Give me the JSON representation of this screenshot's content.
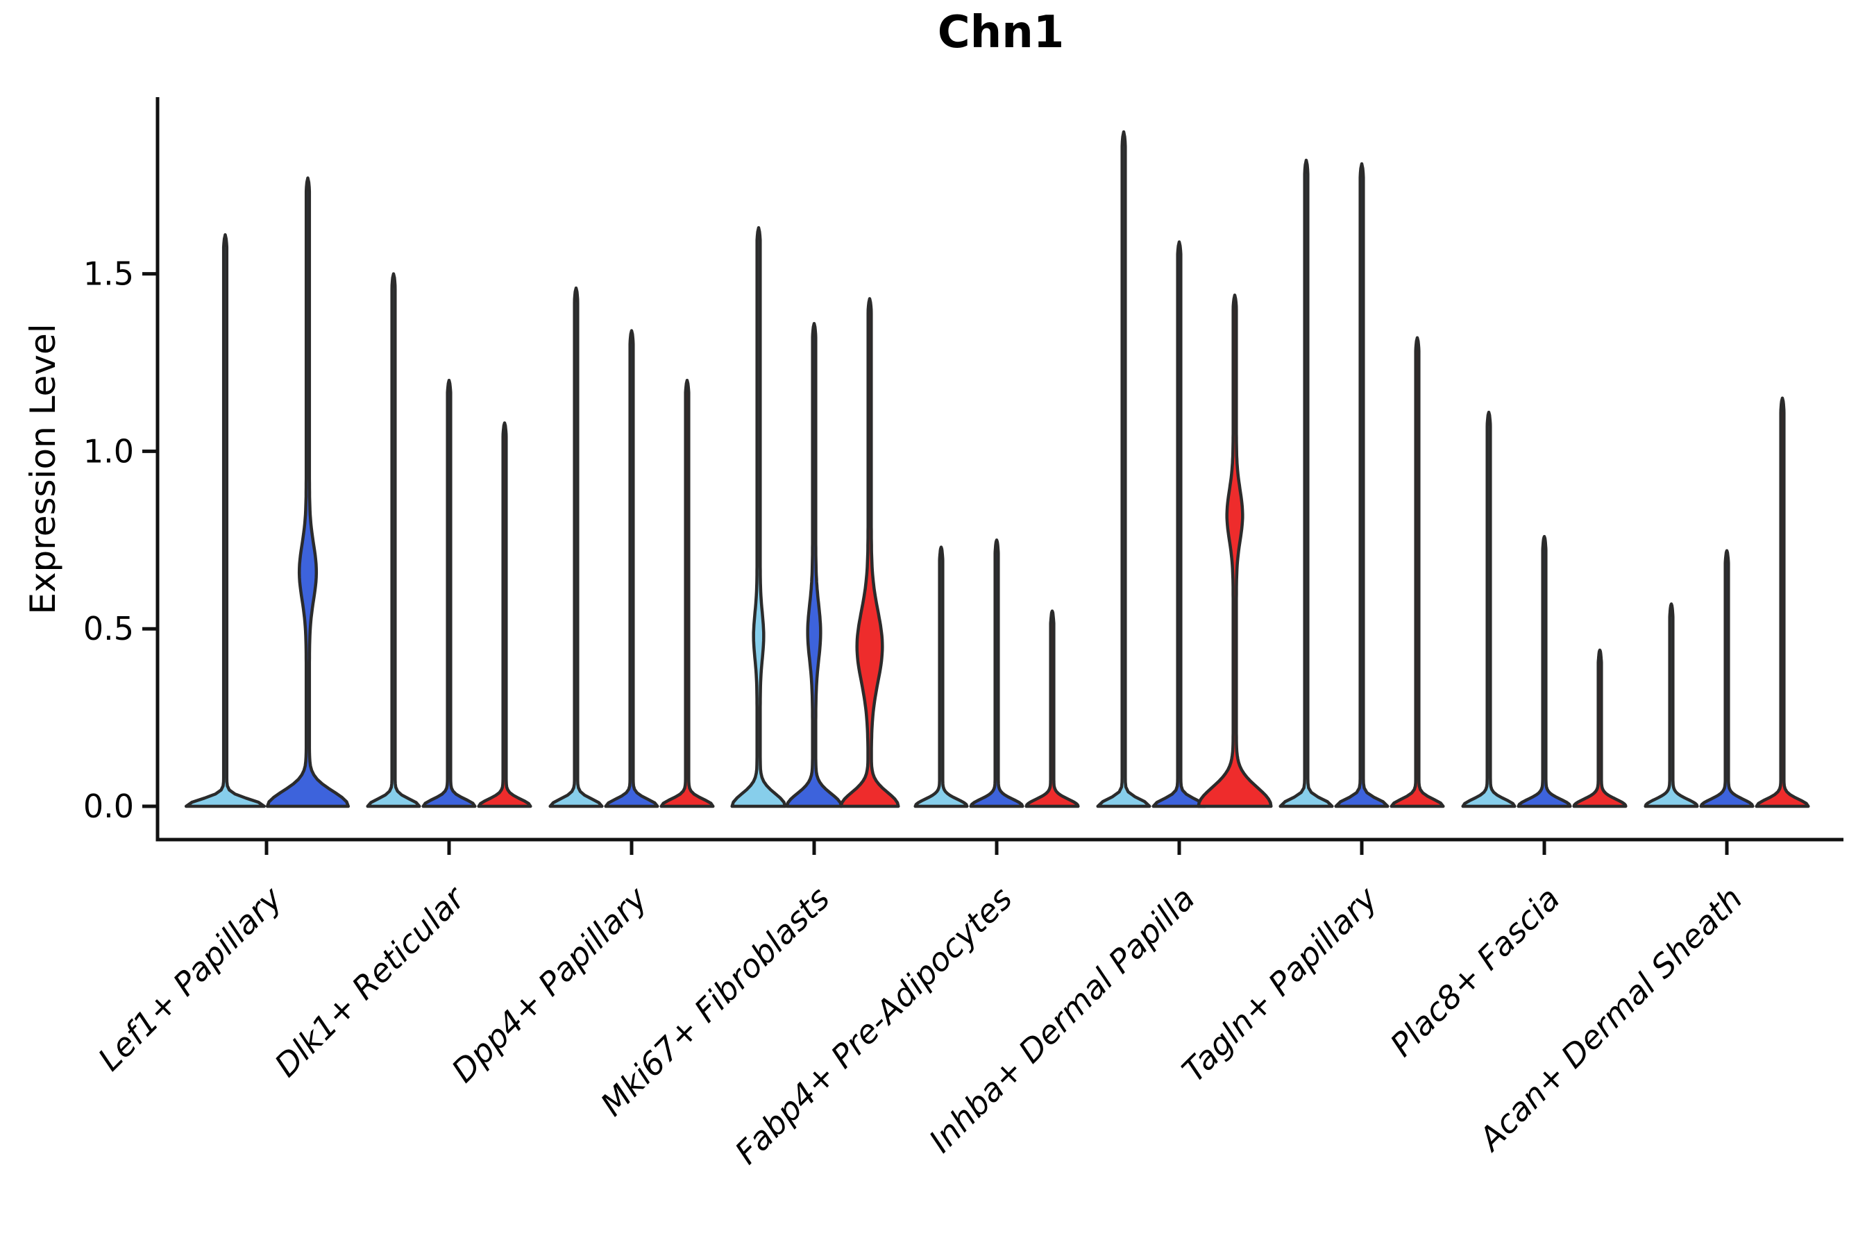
{
  "chart_data": {
    "type": "violin",
    "title": "Chn1",
    "xlabel": "",
    "ylabel": "Expression Level",
    "ylim": [
      0,
      2.0
    ],
    "yticks": [
      0.0,
      0.5,
      1.0,
      1.5
    ],
    "ytick_labels": [
      "0.0",
      "0.5",
      "1.0",
      "1.5"
    ],
    "grid": "off",
    "legend": "none",
    "palette": {
      "lightblue": "#87CEEB",
      "blue": "#3D63DC",
      "red": "#EE2C2C"
    },
    "stroke_color": "#2B2B2B",
    "axis_color": "#111111",
    "categories": [
      "Lef1+ Papillary",
      "Dlk1+ Reticular",
      "Dpp4+ Papillary",
      "Mki67+ Fibroblasts",
      "Fabp4+ Pre-Adipocytes",
      "Inhba+ Dermal Papilla",
      "Tagln+ Papillary",
      "Plac8+ Fascia",
      "Acan+ Dermal Sheath"
    ],
    "groups": [
      {
        "category": "Lef1+ Papillary",
        "violins": [
          {
            "color": "#87CEEB",
            "max": 1.61,
            "base_halfwidth": 54,
            "base_sigma": 0.028
          },
          {
            "color": "#3D63DC",
            "max": 1.77,
            "base_halfwidth": 56,
            "base_sigma": 0.06,
            "bulge": {
              "center": 0.66,
              "sigma": 0.11,
              "halfwidth": 10
            }
          }
        ]
      },
      {
        "category": "Dlk1+ Reticular",
        "violins": [
          {
            "color": "#87CEEB",
            "max": 1.5,
            "base_halfwidth": 35,
            "base_sigma": 0.028
          },
          {
            "color": "#3D63DC",
            "max": 1.2,
            "base_halfwidth": 35,
            "base_sigma": 0.028
          },
          {
            "color": "#EE2C2C",
            "max": 1.08,
            "base_halfwidth": 35,
            "base_sigma": 0.028
          }
        ]
      },
      {
        "category": "Dpp4+ Papillary",
        "violins": [
          {
            "color": "#87CEEB",
            "max": 1.46,
            "base_halfwidth": 35,
            "base_sigma": 0.028
          },
          {
            "color": "#3D63DC",
            "max": 1.34,
            "base_halfwidth": 35,
            "base_sigma": 0.028
          },
          {
            "color": "#EE2C2C",
            "max": 1.2,
            "base_halfwidth": 35,
            "base_sigma": 0.028
          }
        ]
      },
      {
        "category": "Mki67+ Fibroblasts",
        "violins": [
          {
            "color": "#87CEEB",
            "max": 1.63,
            "base_halfwidth": 36,
            "base_sigma": 0.05,
            "bulge": {
              "center": 0.48,
              "sigma": 0.09,
              "halfwidth": 5
            }
          },
          {
            "color": "#3D63DC",
            "max": 1.36,
            "base_halfwidth": 37,
            "base_sigma": 0.05,
            "bulge": {
              "center": 0.49,
              "sigma": 0.11,
              "halfwidth": 7
            }
          },
          {
            "color": "#EE2C2C",
            "max": 1.43,
            "base_halfwidth": 39,
            "base_sigma": 0.055,
            "bulge": {
              "center": 0.45,
              "sigma": 0.14,
              "halfwidth": 16
            }
          }
        ]
      },
      {
        "category": "Fabp4+ Pre-Adipocytes",
        "violins": [
          {
            "color": "#87CEEB",
            "max": 0.73,
            "base_halfwidth": 35,
            "base_sigma": 0.028
          },
          {
            "color": "#3D63DC",
            "max": 0.75,
            "base_halfwidth": 35,
            "base_sigma": 0.028
          },
          {
            "color": "#EE2C2C",
            "max": 0.55,
            "base_halfwidth": 35,
            "base_sigma": 0.028
          }
        ]
      },
      {
        "category": "Inhba+ Dermal Papilla",
        "violins": [
          {
            "color": "#87CEEB",
            "max": 1.9,
            "base_halfwidth": 35,
            "base_sigma": 0.028
          },
          {
            "color": "#3D63DC",
            "max": 1.59,
            "base_halfwidth": 35,
            "base_sigma": 0.028
          },
          {
            "color": "#EE2C2C",
            "max": 1.44,
            "base_halfwidth": 50,
            "base_sigma": 0.075,
            "bulge": {
              "center": 0.82,
              "sigma": 0.1,
              "halfwidth": 9
            }
          }
        ]
      },
      {
        "category": "Tagln+ Papillary",
        "violins": [
          {
            "color": "#87CEEB",
            "max": 1.82,
            "base_halfwidth": 35,
            "base_sigma": 0.028
          },
          {
            "color": "#3D63DC",
            "max": 1.81,
            "base_halfwidth": 35,
            "base_sigma": 0.028
          },
          {
            "color": "#EE2C2C",
            "max": 1.32,
            "base_halfwidth": 35,
            "base_sigma": 0.028
          }
        ]
      },
      {
        "category": "Plac8+ Fascia",
        "violins": [
          {
            "color": "#87CEEB",
            "max": 1.11,
            "base_halfwidth": 35,
            "base_sigma": 0.028
          },
          {
            "color": "#3D63DC",
            "max": 0.76,
            "base_halfwidth": 35,
            "base_sigma": 0.028
          },
          {
            "color": "#EE2C2C",
            "max": 0.44,
            "base_halfwidth": 35,
            "base_sigma": 0.028
          }
        ]
      },
      {
        "category": "Acan+ Dermal Sheath",
        "violins": [
          {
            "color": "#87CEEB",
            "max": 0.57,
            "base_halfwidth": 35,
            "base_sigma": 0.028
          },
          {
            "color": "#3D63DC",
            "max": 0.72,
            "base_halfwidth": 35,
            "base_sigma": 0.028
          },
          {
            "color": "#EE2C2C",
            "max": 1.15,
            "base_halfwidth": 35,
            "base_sigma": 0.028
          }
        ]
      }
    ]
  }
}
